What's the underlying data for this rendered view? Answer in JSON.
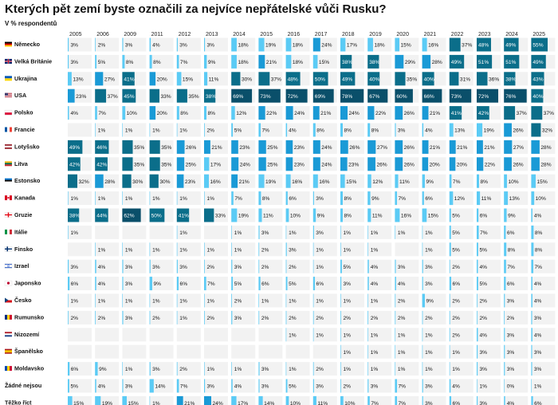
{
  "title": "Kterých pět zemí byste označili za nejvíce nepřátelské vůči Rusku?",
  "subtitle": "V % respondentů",
  "colors": {
    "light": "#5bcbf5",
    "mid": "#1a9ad6",
    "dark": "#0b6e8a",
    "darkest": "#0a4f6a",
    "cell_bg": "#f2f2f2"
  },
  "chart_data": {
    "type": "table",
    "title": "Kterých pět zemí byste označili za nejvíce nepřátelské vůči Rusku?",
    "subtitle": "V % respondentů",
    "years": [
      "2005",
      "2006",
      "2009",
      "2011",
      "2012",
      "2013",
      "2014",
      "2015",
      "2016",
      "2017",
      "2018",
      "2019",
      "2020",
      "2021",
      "2022",
      "2023",
      "2024",
      "2025"
    ],
    "rows": [
      {
        "country": "Německo",
        "flag": "de",
        "values": [
          3,
          2,
          3,
          4,
          3,
          3,
          18,
          19,
          18,
          24,
          17,
          18,
          15,
          16,
          37,
          48,
          49,
          55
        ]
      },
      {
        "country": "Velká Británie",
        "flag": "gb",
        "values": [
          3,
          5,
          8,
          8,
          7,
          9,
          18,
          21,
          18,
          15,
          38,
          38,
          29,
          28,
          49,
          51,
          51,
          49
        ]
      },
      {
        "country": "Ukrajina",
        "flag": "ua",
        "values": [
          13,
          27,
          41,
          20,
          15,
          11,
          30,
          37,
          48,
          50,
          49,
          40,
          35,
          40,
          31,
          36,
          38,
          43
        ]
      },
      {
        "country": "USA",
        "flag": "us",
        "values": [
          23,
          37,
          45,
          33,
          35,
          38,
          69,
          73,
          72,
          69,
          78,
          67,
          60,
          66,
          73,
          72,
          76,
          40
        ]
      },
      {
        "country": "Polsko",
        "flag": "pl",
        "values": [
          4,
          7,
          10,
          20,
          8,
          8,
          12,
          22,
          24,
          21,
          24,
          22,
          26,
          21,
          41,
          42,
          37,
          37
        ]
      },
      {
        "country": "Francie",
        "flag": "fr",
        "values": [
          null,
          1,
          1,
          1,
          1,
          2,
          5,
          7,
          4,
          8,
          8,
          8,
          3,
          4,
          13,
          19,
          26,
          32
        ]
      },
      {
        "country": "Lotyšsko",
        "flag": "lv",
        "values": [
          49,
          46,
          35,
          35,
          26,
          21,
          23,
          25,
          23,
          24,
          26,
          27,
          26,
          21,
          21,
          21,
          27,
          28
        ]
      },
      {
        "country": "Litva",
        "flag": "lt",
        "values": [
          42,
          42,
          35,
          35,
          25,
          17,
          24,
          25,
          23,
          24,
          23,
          26,
          26,
          20,
          20,
          22,
          26,
          28
        ]
      },
      {
        "country": "Estonsko",
        "flag": "ee",
        "values": [
          32,
          28,
          30,
          30,
          23,
          16,
          21,
          19,
          16,
          16,
          15,
          12,
          11,
          9,
          7,
          8,
          10,
          15
        ]
      },
      {
        "country": "Kanada",
        "flag": "ca",
        "values": [
          1,
          1,
          1,
          1,
          1,
          1,
          7,
          8,
          6,
          3,
          8,
          9,
          7,
          6,
          12,
          11,
          13,
          10
        ]
      },
      {
        "country": "Gruzie",
        "flag": "ge",
        "values": [
          38,
          44,
          62,
          50,
          41,
          33,
          19,
          11,
          10,
          9,
          8,
          11,
          16,
          15,
          5,
          6,
          9,
          4
        ]
      },
      {
        "country": "Itálie",
        "flag": "it",
        "values": [
          1,
          null,
          null,
          null,
          1,
          null,
          1,
          3,
          1,
          3,
          1,
          1,
          1,
          1,
          5,
          7,
          6,
          8
        ]
      },
      {
        "country": "Finsko",
        "flag": "fi",
        "values": [
          null,
          1,
          1,
          1,
          1,
          1,
          1,
          2,
          3,
          1,
          1,
          1,
          null,
          1,
          5,
          5,
          8,
          8
        ]
      },
      {
        "country": "Izrael",
        "flag": "il",
        "values": [
          3,
          4,
          3,
          3,
          3,
          2,
          3,
          2,
          2,
          1,
          5,
          4,
          3,
          3,
          2,
          4,
          7,
          7
        ]
      },
      {
        "country": "Japonsko",
        "flag": "jp",
        "values": [
          6,
          4,
          3,
          9,
          6,
          7,
          5,
          6,
          5,
          6,
          3,
          4,
          4,
          3,
          6,
          5,
          6,
          4
        ]
      },
      {
        "country": "Česko",
        "flag": "cz",
        "values": [
          1,
          1,
          1,
          1,
          1,
          1,
          2,
          1,
          1,
          1,
          1,
          1,
          2,
          9,
          2,
          2,
          3,
          4
        ]
      },
      {
        "country": "Rumunsko",
        "flag": "ro",
        "values": [
          2,
          2,
          3,
          2,
          1,
          2,
          3,
          2,
          2,
          2,
          2,
          2,
          2,
          2,
          2,
          2,
          2,
          3
        ]
      },
      {
        "country": "Nizozemí",
        "flag": "nl",
        "values": [
          null,
          null,
          null,
          null,
          null,
          null,
          null,
          null,
          1,
          1,
          1,
          1,
          1,
          1,
          2,
          4,
          3,
          4
        ]
      },
      {
        "country": "Španělsko",
        "flag": "es",
        "values": [
          null,
          null,
          null,
          null,
          null,
          null,
          null,
          null,
          null,
          null,
          1,
          1,
          1,
          1,
          1,
          3,
          3,
          3
        ]
      },
      {
        "country": "Moldavsko",
        "flag": "md",
        "values": [
          6,
          9,
          1,
          3,
          2,
          1,
          1,
          3,
          1,
          2,
          1,
          1,
          1,
          1,
          1,
          3,
          3,
          3
        ]
      },
      {
        "country": "Žádné nejsou",
        "flag": "",
        "values": [
          5,
          4,
          3,
          14,
          7,
          3,
          4,
          3,
          5,
          3,
          2,
          3,
          7,
          3,
          4,
          1,
          0,
          1
        ]
      },
      {
        "country": "Těžko říct",
        "flag": "",
        "values": [
          15,
          19,
          15,
          1,
          21,
          24,
          17,
          14,
          10,
          11,
          10,
          7,
          7,
          3,
          6,
          3,
          4,
          6
        ]
      }
    ]
  }
}
